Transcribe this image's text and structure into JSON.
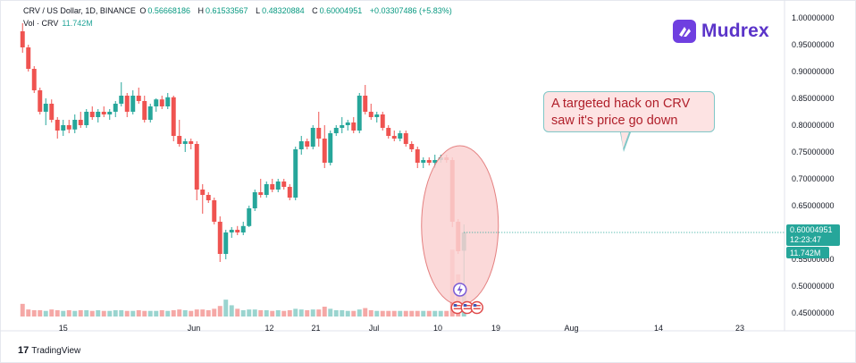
{
  "header": {
    "symbol": "CRV / US Dollar, 1D, BINANCE",
    "o_label": "O",
    "o_value": "0.56668186",
    "h_label": "H",
    "h_value": "0.61533567",
    "l_label": "L",
    "l_value": "0.48320884",
    "c_label": "C",
    "c_value": "0.60004951",
    "change": "+0.03307486 (+5.83%)"
  },
  "volume_header": {
    "label": "Vol · CRV",
    "value": "11.742M"
  },
  "brand": {
    "name": "Mudrex"
  },
  "footer": {
    "logo": "17",
    "name": "TradingView"
  },
  "annotation": {
    "text": "A targeted hack on CRV saw it's price go down"
  },
  "price_badge": {
    "value": "0.60004951",
    "countdown": "12:23:47"
  },
  "volume_badge": {
    "value": "11.742M"
  },
  "colors": {
    "up": "#26a69a",
    "down": "#ef5350",
    "volume_up": "#9ad4cf",
    "volume_down": "#f5a8a6",
    "callout_fill": "#fde3e3",
    "ellipse_fill": "#fbd3d3",
    "brand": "#5b34c9"
  },
  "chart_data": {
    "type": "candlestick",
    "title": "CRV / US Dollar, 1D, BINANCE",
    "xlabel": "",
    "ylabel": "",
    "x_ticks": [
      "15",
      "Jun",
      "12",
      "21",
      "Jul",
      "10",
      "19",
      "Aug",
      "14",
      "23"
    ],
    "y_ticks": [
      "1.00000000",
      "0.95000000",
      "0.90000000",
      "0.85000000",
      "0.80000000",
      "0.75000000",
      "0.70000000",
      "0.65000000",
      "0.60000000",
      "0.55000000",
      "0.50000000",
      "0.45000000"
    ],
    "ylim": [
      0.43,
      1.01
    ],
    "candles": [
      {
        "o": 0.975,
        "h": 0.99,
        "l": 0.935,
        "c": 0.945
      },
      {
        "o": 0.945,
        "h": 0.95,
        "l": 0.9,
        "c": 0.905
      },
      {
        "o": 0.905,
        "h": 0.91,
        "l": 0.86,
        "c": 0.865
      },
      {
        "o": 0.865,
        "h": 0.87,
        "l": 0.82,
        "c": 0.825
      },
      {
        "o": 0.825,
        "h": 0.85,
        "l": 0.8,
        "c": 0.84
      },
      {
        "o": 0.84,
        "h": 0.848,
        "l": 0.805,
        "c": 0.81
      },
      {
        "o": 0.81,
        "h": 0.815,
        "l": 0.775,
        "c": 0.79
      },
      {
        "o": 0.79,
        "h": 0.81,
        "l": 0.78,
        "c": 0.8
      },
      {
        "o": 0.8,
        "h": 0.81,
        "l": 0.785,
        "c": 0.792
      },
      {
        "o": 0.792,
        "h": 0.82,
        "l": 0.785,
        "c": 0.81
      },
      {
        "o": 0.81,
        "h": 0.825,
        "l": 0.795,
        "c": 0.8
      },
      {
        "o": 0.8,
        "h": 0.83,
        "l": 0.795,
        "c": 0.825
      },
      {
        "o": 0.825,
        "h": 0.835,
        "l": 0.81,
        "c": 0.815
      },
      {
        "o": 0.815,
        "h": 0.83,
        "l": 0.805,
        "c": 0.825
      },
      {
        "o": 0.825,
        "h": 0.835,
        "l": 0.815,
        "c": 0.82
      },
      {
        "o": 0.82,
        "h": 0.83,
        "l": 0.81,
        "c": 0.825
      },
      {
        "o": 0.825,
        "h": 0.845,
        "l": 0.815,
        "c": 0.84
      },
      {
        "o": 0.84,
        "h": 0.88,
        "l": 0.835,
        "c": 0.855
      },
      {
        "o": 0.855,
        "h": 0.86,
        "l": 0.815,
        "c": 0.825
      },
      {
        "o": 0.825,
        "h": 0.865,
        "l": 0.82,
        "c": 0.855
      },
      {
        "o": 0.855,
        "h": 0.87,
        "l": 0.84,
        "c": 0.845
      },
      {
        "o": 0.845,
        "h": 0.855,
        "l": 0.805,
        "c": 0.81
      },
      {
        "o": 0.81,
        "h": 0.84,
        "l": 0.805,
        "c": 0.835
      },
      {
        "o": 0.835,
        "h": 0.85,
        "l": 0.825,
        "c": 0.848
      },
      {
        "o": 0.848,
        "h": 0.855,
        "l": 0.83,
        "c": 0.835
      },
      {
        "o": 0.835,
        "h": 0.86,
        "l": 0.83,
        "c": 0.852
      },
      {
        "o": 0.852,
        "h": 0.855,
        "l": 0.77,
        "c": 0.78
      },
      {
        "o": 0.78,
        "h": 0.81,
        "l": 0.76,
        "c": 0.765
      },
      {
        "o": 0.765,
        "h": 0.775,
        "l": 0.75,
        "c": 0.77
      },
      {
        "o": 0.77,
        "h": 0.775,
        "l": 0.755,
        "c": 0.765
      },
      {
        "o": 0.765,
        "h": 0.77,
        "l": 0.66,
        "c": 0.68
      },
      {
        "o": 0.68,
        "h": 0.69,
        "l": 0.635,
        "c": 0.67
      },
      {
        "o": 0.67,
        "h": 0.675,
        "l": 0.655,
        "c": 0.66
      },
      {
        "o": 0.66,
        "h": 0.665,
        "l": 0.615,
        "c": 0.62
      },
      {
        "o": 0.62,
        "h": 0.63,
        "l": 0.545,
        "c": 0.56
      },
      {
        "o": 0.56,
        "h": 0.605,
        "l": 0.55,
        "c": 0.6
      },
      {
        "o": 0.6,
        "h": 0.61,
        "l": 0.59,
        "c": 0.605
      },
      {
        "o": 0.605,
        "h": 0.612,
        "l": 0.595,
        "c": 0.6
      },
      {
        "o": 0.6,
        "h": 0.62,
        "l": 0.595,
        "c": 0.612
      },
      {
        "o": 0.612,
        "h": 0.65,
        "l": 0.61,
        "c": 0.645
      },
      {
        "o": 0.645,
        "h": 0.68,
        "l": 0.64,
        "c": 0.675
      },
      {
        "o": 0.675,
        "h": 0.7,
        "l": 0.665,
        "c": 0.67
      },
      {
        "o": 0.67,
        "h": 0.695,
        "l": 0.665,
        "c": 0.69
      },
      {
        "o": 0.69,
        "h": 0.7,
        "l": 0.675,
        "c": 0.68
      },
      {
        "o": 0.68,
        "h": 0.7,
        "l": 0.675,
        "c": 0.695
      },
      {
        "o": 0.695,
        "h": 0.7,
        "l": 0.68,
        "c": 0.685
      },
      {
        "o": 0.685,
        "h": 0.69,
        "l": 0.66,
        "c": 0.665
      },
      {
        "o": 0.665,
        "h": 0.76,
        "l": 0.66,
        "c": 0.755
      },
      {
        "o": 0.755,
        "h": 0.78,
        "l": 0.745,
        "c": 0.77
      },
      {
        "o": 0.77,
        "h": 0.775,
        "l": 0.755,
        "c": 0.76
      },
      {
        "o": 0.76,
        "h": 0.8,
        "l": 0.755,
        "c": 0.795
      },
      {
        "o": 0.795,
        "h": 0.825,
        "l": 0.76,
        "c": 0.775
      },
      {
        "o": 0.775,
        "h": 0.8,
        "l": 0.72,
        "c": 0.73
      },
      {
        "o": 0.73,
        "h": 0.79,
        "l": 0.725,
        "c": 0.785
      },
      {
        "o": 0.785,
        "h": 0.8,
        "l": 0.78,
        "c": 0.795
      },
      {
        "o": 0.795,
        "h": 0.815,
        "l": 0.785,
        "c": 0.8
      },
      {
        "o": 0.8,
        "h": 0.81,
        "l": 0.79,
        "c": 0.805
      },
      {
        "o": 0.805,
        "h": 0.815,
        "l": 0.785,
        "c": 0.79
      },
      {
        "o": 0.79,
        "h": 0.86,
        "l": 0.785,
        "c": 0.855
      },
      {
        "o": 0.855,
        "h": 0.875,
        "l": 0.82,
        "c": 0.825
      },
      {
        "o": 0.825,
        "h": 0.84,
        "l": 0.81,
        "c": 0.815
      },
      {
        "o": 0.815,
        "h": 0.825,
        "l": 0.805,
        "c": 0.82
      },
      {
        "o": 0.82,
        "h": 0.825,
        "l": 0.79,
        "c": 0.795
      },
      {
        "o": 0.795,
        "h": 0.8,
        "l": 0.775,
        "c": 0.78
      },
      {
        "o": 0.78,
        "h": 0.79,
        "l": 0.77,
        "c": 0.775
      },
      {
        "o": 0.775,
        "h": 0.79,
        "l": 0.77,
        "c": 0.785
      },
      {
        "o": 0.785,
        "h": 0.79,
        "l": 0.76,
        "c": 0.765
      },
      {
        "o": 0.765,
        "h": 0.77,
        "l": 0.75,
        "c": 0.755
      },
      {
        "o": 0.755,
        "h": 0.76,
        "l": 0.72,
        "c": 0.73
      },
      {
        "o": 0.73,
        "h": 0.74,
        "l": 0.72,
        "c": 0.735
      },
      {
        "o": 0.735,
        "h": 0.74,
        "l": 0.725,
        "c": 0.73
      },
      {
        "o": 0.73,
        "h": 0.745,
        "l": 0.72,
        "c": 0.735
      },
      {
        "o": 0.735,
        "h": 0.745,
        "l": 0.73,
        "c": 0.74
      },
      {
        "o": 0.74,
        "h": 0.745,
        "l": 0.73,
        "c": 0.735
      },
      {
        "o": 0.735,
        "h": 0.74,
        "l": 0.61,
        "c": 0.62
      },
      {
        "o": 0.62,
        "h": 0.625,
        "l": 0.56,
        "c": 0.565
      },
      {
        "o": 0.566,
        "h": 0.615,
        "l": 0.483,
        "c": 0.6
      }
    ],
    "volumes": [
      18,
      10,
      9,
      9,
      8,
      10,
      9,
      8,
      9,
      8,
      9,
      9,
      8,
      9,
      8,
      8,
      9,
      9,
      8,
      8,
      9,
      8,
      8,
      8,
      9,
      8,
      9,
      10,
      9,
      8,
      10,
      10,
      9,
      11,
      15,
      24,
      16,
      11,
      9,
      10,
      10,
      9,
      9,
      8,
      9,
      8,
      9,
      11,
      10,
      9,
      10,
      10,
      14,
      11,
      9,
      9,
      8,
      8,
      10,
      12,
      9,
      8,
      8,
      8,
      8,
      8,
      8,
      8,
      8,
      8,
      8,
      8,
      8,
      8,
      95,
      60,
      38
    ]
  }
}
